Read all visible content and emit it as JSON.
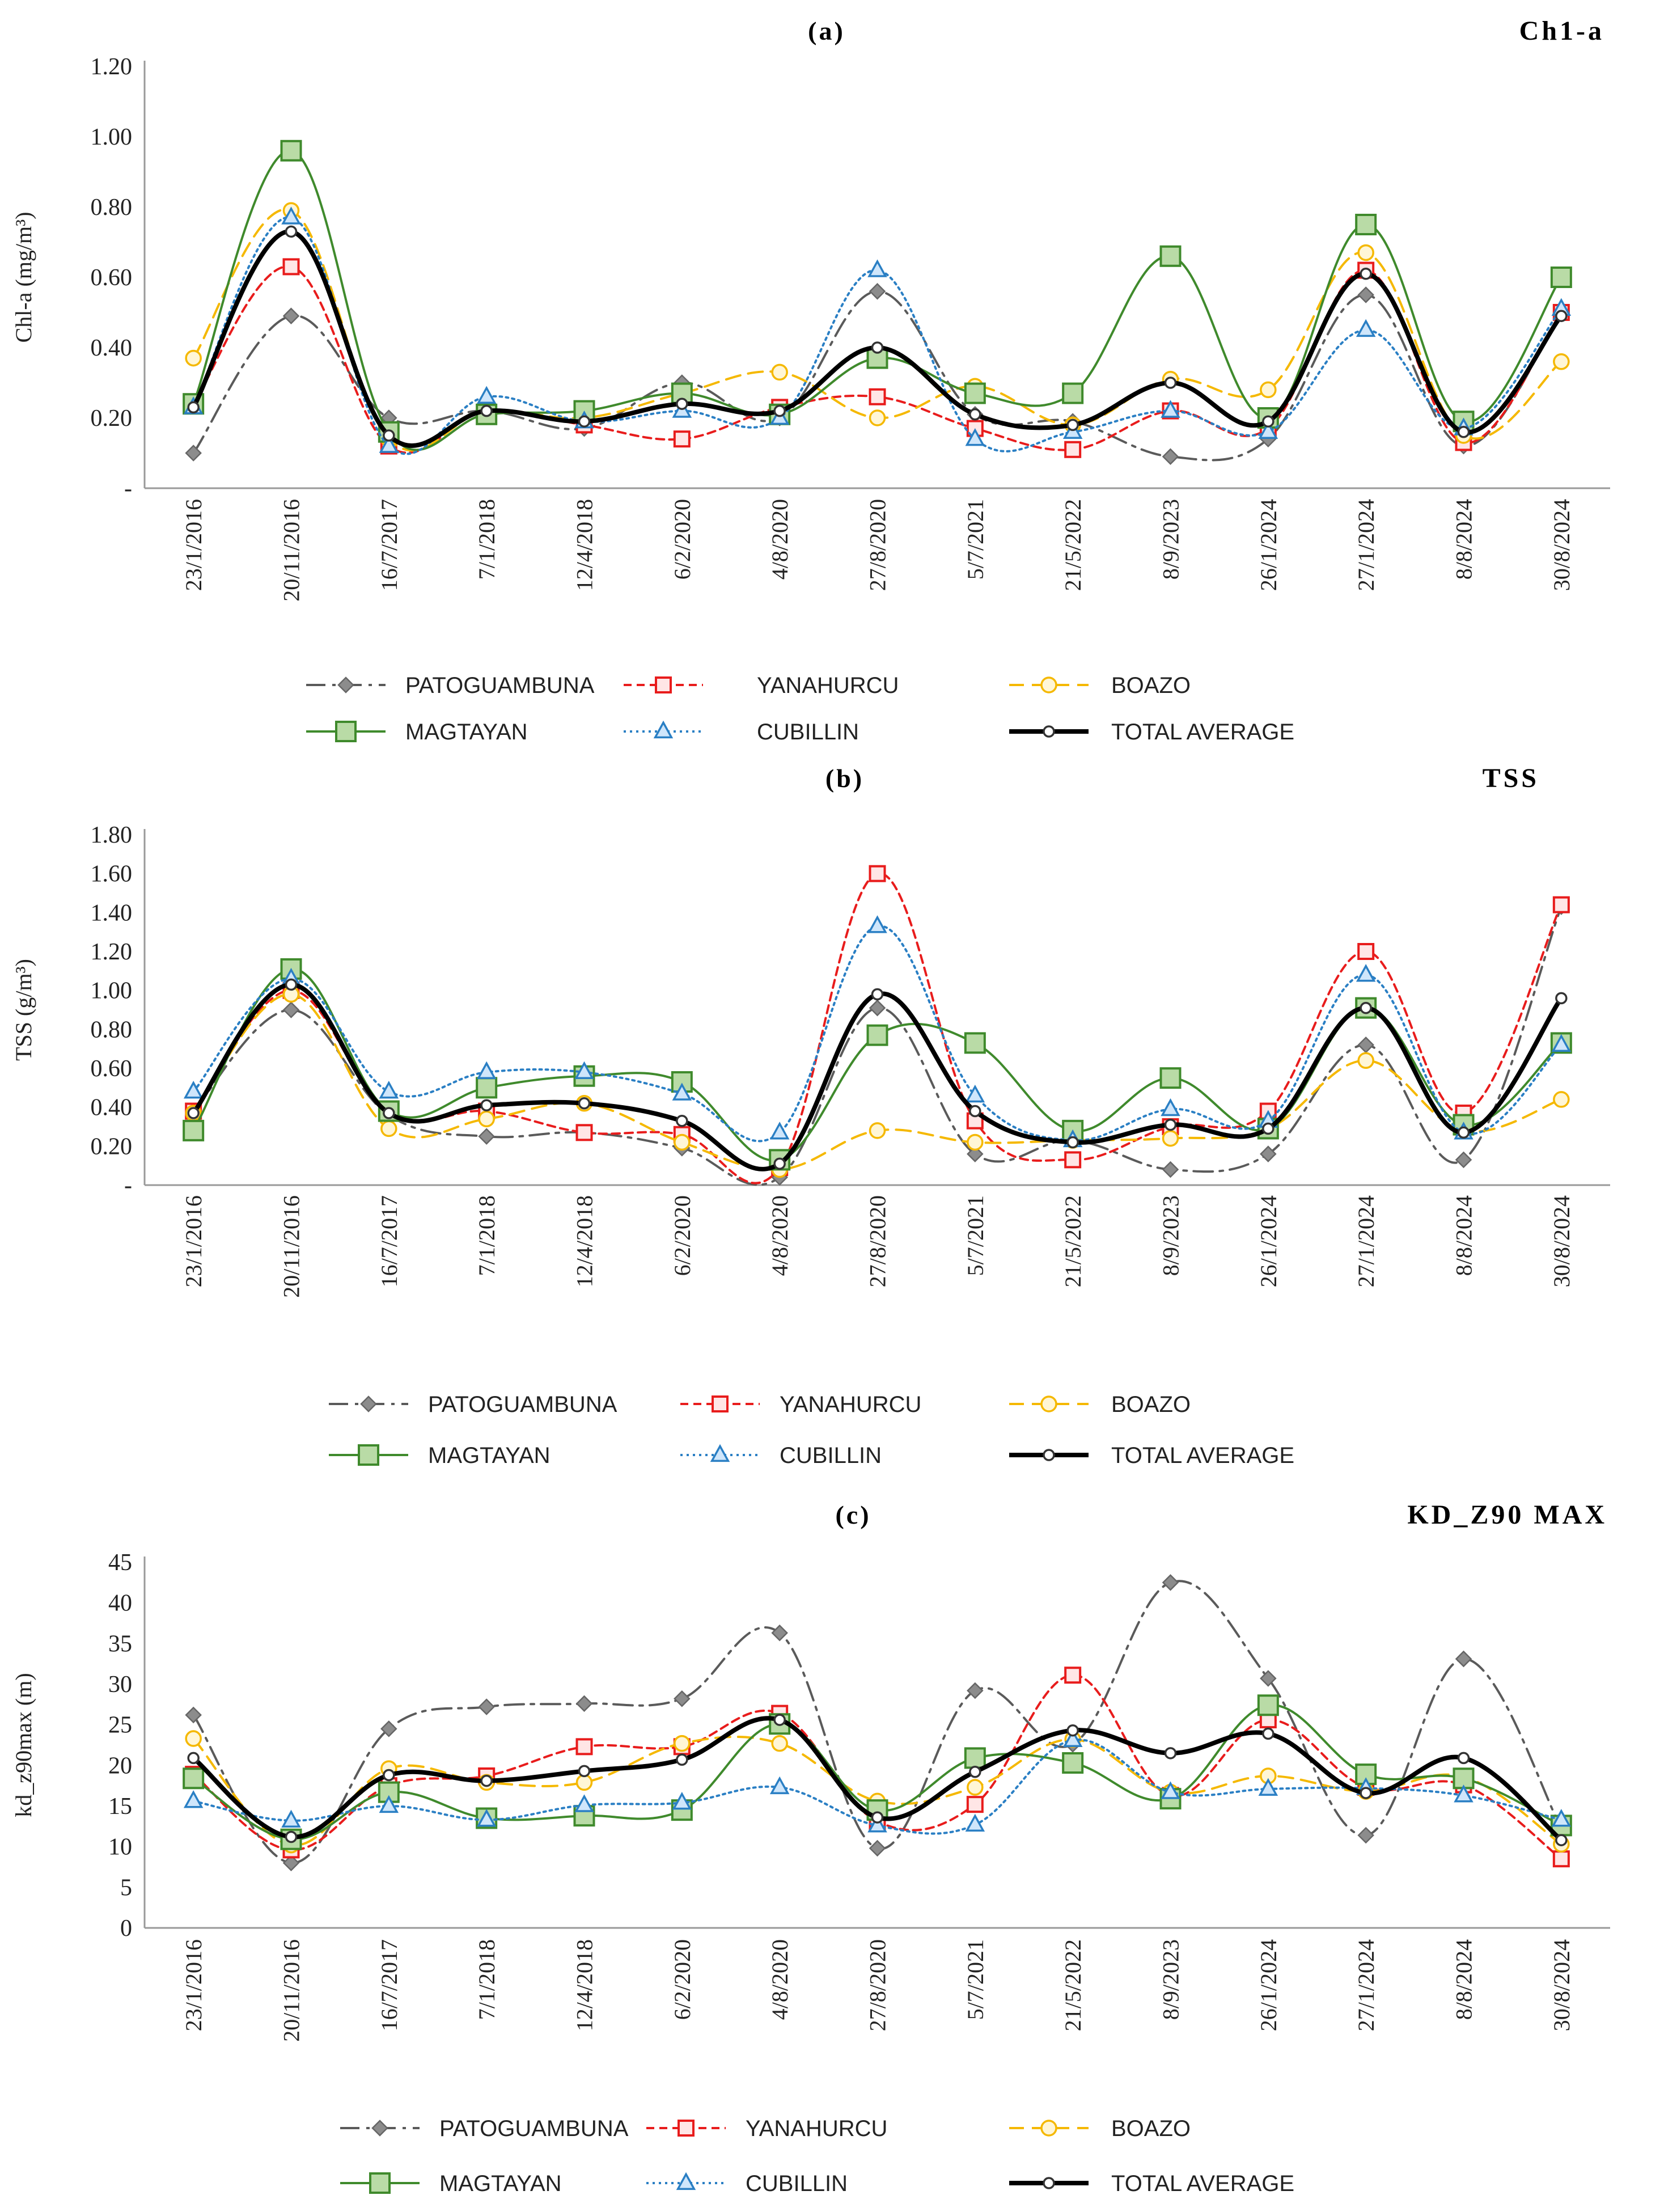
{
  "panels": [
    {
      "sublabel": "(a)",
      "title": "Ch1-a"
    },
    {
      "sublabel": "(b)",
      "title": "TSS"
    },
    {
      "sublabel": "(c)",
      "title": "KD_Z90 MAX"
    }
  ],
  "colors": {
    "PATOGUAMBUNA": "#5a5a5a",
    "YANAHURCU": "#e81c1c",
    "BOAZO": "#f5b800",
    "MAGTAYAN": "#3f8a2c",
    "CUBILLIN": "#2a7fc4",
    "TOTAL AVERAGE": "#000000"
  },
  "chart_data": [
    {
      "type": "line",
      "title": "Ch1-a",
      "ylabel": "Chl-a (mg/m³)",
      "xlabel": "",
      "ylim": [
        0,
        1.2
      ],
      "yticks": [
        0,
        0.2,
        0.4,
        0.6,
        0.8,
        1.0,
        1.2
      ],
      "ytick_labels": [
        "-",
        "0.20",
        "0.40",
        "0.60",
        "0.80",
        "1.00",
        "1.20"
      ],
      "categories": [
        "23/1/2016",
        "20/11/2016",
        "16/7/2017",
        "7/1/2018",
        "12/4/2018",
        "6/2/2020",
        "4/8/2020",
        "27/8/2020",
        "5/7/2021",
        "21/5/2022",
        "8/9/2023",
        "26/1/2024",
        "27/1/2024",
        "8/8/2024",
        "30/8/2024"
      ],
      "series": [
        {
          "name": "PATOGUAMBUNA",
          "values": [
            0.1,
            0.49,
            0.2,
            0.22,
            0.17,
            0.3,
            0.2,
            0.56,
            0.21,
            0.19,
            0.09,
            0.14,
            0.55,
            0.12,
            0.5
          ]
        },
        {
          "name": "YANAHURCU",
          "values": [
            0.24,
            0.63,
            0.12,
            0.22,
            0.18,
            0.14,
            0.23,
            0.26,
            0.17,
            0.11,
            0.22,
            0.17,
            0.62,
            0.13,
            0.5
          ]
        },
        {
          "name": "BOAZO",
          "values": [
            0.37,
            0.79,
            0.14,
            0.22,
            0.2,
            0.27,
            0.33,
            0.2,
            0.29,
            0.18,
            0.31,
            0.28,
            0.67,
            0.15,
            0.36
          ]
        },
        {
          "name": "MAGTAYAN",
          "values": [
            0.24,
            0.96,
            0.16,
            0.21,
            0.22,
            0.27,
            0.21,
            0.37,
            0.27,
            0.27,
            0.66,
            0.2,
            0.75,
            0.19,
            0.6
          ]
        },
        {
          "name": "CUBILLIN",
          "values": [
            0.23,
            0.77,
            0.12,
            0.26,
            0.19,
            0.22,
            0.2,
            0.62,
            0.14,
            0.16,
            0.22,
            0.16,
            0.45,
            0.17,
            0.51
          ]
        },
        {
          "name": "TOTAL AVERAGE",
          "values": [
            0.23,
            0.73,
            0.15,
            0.22,
            0.19,
            0.24,
            0.22,
            0.4,
            0.21,
            0.18,
            0.3,
            0.19,
            0.61,
            0.16,
            0.49
          ]
        }
      ]
    },
    {
      "type": "line",
      "title": "TSS",
      "ylabel": "TSS (g/m³)",
      "xlabel": "",
      "ylim": [
        0,
        1.8
      ],
      "yticks": [
        0,
        0.2,
        0.4,
        0.6,
        0.8,
        1.0,
        1.2,
        1.4,
        1.6,
        1.8
      ],
      "ytick_labels": [
        "-",
        "0.20",
        "0.40",
        "0.60",
        "0.80",
        "1.00",
        "1.20",
        "1.40",
        "1.60",
        "1.80"
      ],
      "categories": [
        "23/1/2016",
        "20/11/2016",
        "16/7/2017",
        "7/1/2018",
        "12/4/2018",
        "6/2/2020",
        "4/8/2020",
        "27/8/2020",
        "5/7/2021",
        "21/5/2022",
        "8/9/2023",
        "26/1/2024",
        "27/1/2024",
        "8/8/2024",
        "30/8/2024"
      ],
      "series": [
        {
          "name": "PATOGUAMBUNA",
          "values": [
            0.38,
            0.9,
            0.36,
            0.25,
            0.27,
            0.19,
            0.04,
            0.91,
            0.16,
            0.23,
            0.08,
            0.16,
            0.72,
            0.13,
            1.43
          ]
        },
        {
          "name": "YANAHURCU",
          "values": [
            0.38,
            1.0,
            0.37,
            0.38,
            0.27,
            0.26,
            0.09,
            1.6,
            0.33,
            0.13,
            0.3,
            0.38,
            1.2,
            0.37,
            1.44
          ]
        },
        {
          "name": "BOAZO",
          "values": [
            0.37,
            0.98,
            0.29,
            0.34,
            0.42,
            0.22,
            0.08,
            0.28,
            0.22,
            0.23,
            0.24,
            0.29,
            0.64,
            0.28,
            0.44
          ]
        },
        {
          "name": "MAGTAYAN",
          "values": [
            0.28,
            1.11,
            0.38,
            0.5,
            0.56,
            0.53,
            0.13,
            0.77,
            0.73,
            0.28,
            0.55,
            0.29,
            0.91,
            0.31,
            0.73
          ]
        },
        {
          "name": "CUBILLIN",
          "values": [
            0.48,
            1.06,
            0.48,
            0.58,
            0.58,
            0.47,
            0.27,
            1.33,
            0.46,
            0.23,
            0.39,
            0.33,
            1.08,
            0.27,
            0.72
          ]
        },
        {
          "name": "TOTAL AVERAGE",
          "values": [
            0.37,
            1.03,
            0.37,
            0.41,
            0.42,
            0.33,
            0.11,
            0.98,
            0.38,
            0.22,
            0.31,
            0.29,
            0.91,
            0.27,
            0.96
          ]
        }
      ]
    },
    {
      "type": "line",
      "title": "KD_Z90 MAX",
      "ylabel": "kd_z90max (m)",
      "xlabel": "",
      "ylim": [
        0,
        45
      ],
      "yticks": [
        0,
        5,
        10,
        15,
        20,
        25,
        30,
        35,
        40,
        45
      ],
      "ytick_labels": [
        "0",
        "5",
        "10",
        "15",
        "20",
        "25",
        "30",
        "35",
        "40",
        "45"
      ],
      "categories": [
        "23/1/2016",
        "20/11/2016",
        "16/7/2017",
        "7/1/2018",
        "12/4/2018",
        "6/2/2020",
        "4/8/2020",
        "27/8/2020",
        "5/7/2021",
        "21/5/2022",
        "8/9/2023",
        "26/1/2024",
        "27/1/2024",
        "8/8/2024",
        "30/8/2024"
      ],
      "series": [
        {
          "name": "PATOGUAMBUNA",
          "values": [
            26.2,
            8.0,
            24.5,
            27.2,
            27.6,
            28.2,
            36.3,
            9.8,
            29.2,
            22.6,
            42.5,
            30.7,
            11.4,
            33.1,
            12.3
          ]
        },
        {
          "name": "YANAHURCU",
          "values": [
            18.9,
            9.6,
            17.5,
            18.7,
            22.3,
            22.3,
            26.4,
            13.1,
            15.2,
            31.1,
            16.3,
            25.6,
            17.3,
            17.6,
            8.5
          ]
        },
        {
          "name": "BOAZO",
          "values": [
            23.3,
            10.2,
            19.6,
            17.9,
            17.9,
            22.7,
            22.7,
            15.6,
            17.3,
            23.2,
            16.7,
            18.7,
            16.8,
            18.6,
            10.3
          ]
        },
        {
          "name": "MAGTAYAN",
          "values": [
            18.4,
            10.9,
            16.7,
            13.5,
            13.8,
            14.5,
            25.1,
            14.5,
            20.9,
            20.3,
            15.9,
            27.4,
            18.9,
            18.4,
            12.6
          ]
        },
        {
          "name": "CUBILLIN",
          "values": [
            15.6,
            13.2,
            15.0,
            13.3,
            15.1,
            15.4,
            17.3,
            12.6,
            12.7,
            23.1,
            16.7,
            17.1,
            17.2,
            16.3,
            13.3
          ]
        },
        {
          "name": "TOTAL AVERAGE",
          "values": [
            20.9,
            11.2,
            18.8,
            18.1,
            19.3,
            20.7,
            25.6,
            13.6,
            19.2,
            24.3,
            21.5,
            23.9,
            16.6,
            20.9,
            10.8
          ]
        }
      ]
    }
  ]
}
